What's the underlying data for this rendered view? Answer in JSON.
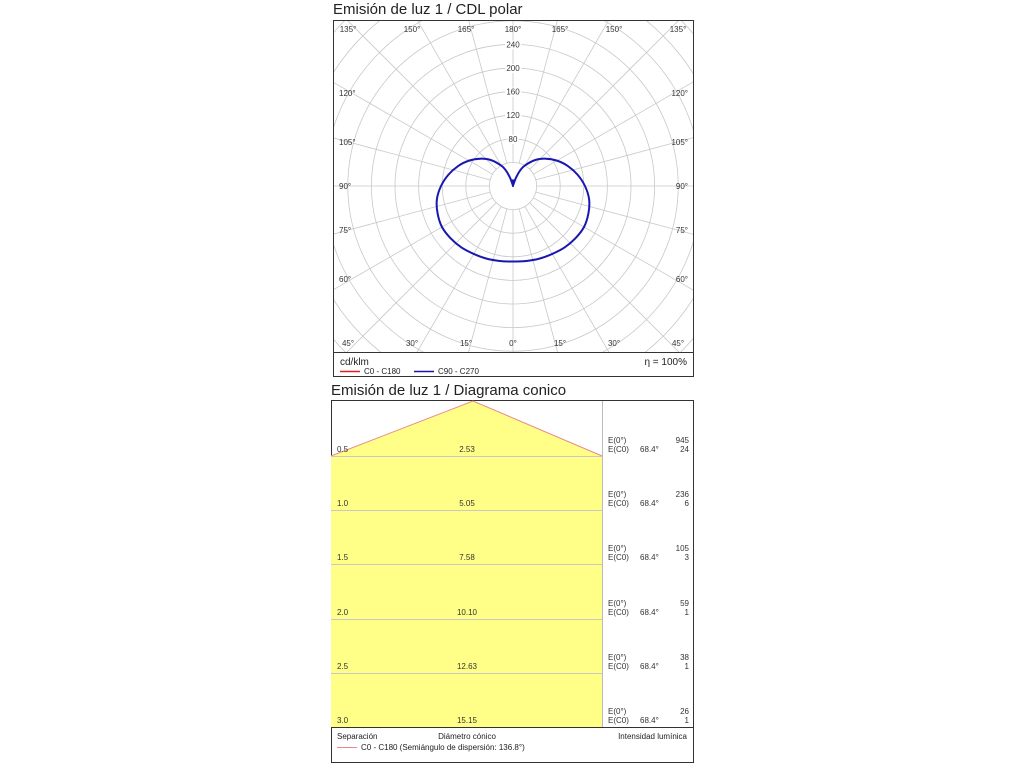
{
  "chart_data": [
    {
      "type": "polar",
      "title": "Emisión de luz 1 / CDL polar",
      "unit": "cd/klm",
      "efficiency": "η = 100%",
      "angle_labels_top": [
        "135°",
        "150°",
        "165°",
        "180°",
        "165°",
        "150°",
        "135°"
      ],
      "angle_labels_bottom": [
        "45°",
        "30°",
        "15°",
        "0°",
        "15°",
        "30°",
        "45°"
      ],
      "angle_labels_left": [
        "120°",
        "105°",
        "90°",
        "75°",
        "60°"
      ],
      "angle_labels_right": [
        "120°",
        "105°",
        "90°",
        "75°",
        "60°"
      ],
      "radial_tick_labels": [
        "80",
        "120",
        "160",
        "200",
        "240"
      ],
      "radial_ticks": [
        80,
        120,
        160,
        200,
        240
      ],
      "rlim": [
        0,
        280
      ],
      "grid": true,
      "legend": [
        {
          "name": "C0 - C180",
          "color": "#e02020"
        },
        {
          "name": "C90 - C270",
          "color": "#1a17b0"
        }
      ],
      "series": [
        {
          "name": "C90 - C270",
          "color": "#1a17b0",
          "gamma_deg": [
            0,
            10,
            20,
            30,
            40,
            50,
            60,
            70,
            80,
            90,
            100,
            110,
            120,
            130,
            140,
            150,
            155,
            160,
            165,
            170,
            175,
            180
          ],
          "intensity_cd_klm": [
            128,
            129,
            131,
            133,
            136,
            138,
            139,
            136,
            131,
            122,
            111,
            99,
            86,
            72,
            57,
            40,
            30,
            16,
            3,
            0,
            6,
            10
          ]
        }
      ]
    },
    {
      "type": "cone",
      "title": "Emisión de luz 1 / Diagrama conico",
      "legend": "C0 - C180 (Semiángulo de dispersión: 136.8°)",
      "legend_color": "#e88b8b",
      "fill_color": "#ffff88",
      "footer_labels": {
        "separation": "Separación",
        "diameter": "Diámetro cónico",
        "intensity": "Intensidad lumínica"
      },
      "rows": [
        {
          "distance": "0.5",
          "diameter": "2.53",
          "e0_label": "E(0°)",
          "ec0_label": "E(C0)",
          "angle": "68.4°",
          "e0": "945",
          "ec0": "24"
        },
        {
          "distance": "1.0",
          "diameter": "5.05",
          "e0_label": "E(0°)",
          "ec0_label": "E(C0)",
          "angle": "68.4°",
          "e0": "236",
          "ec0": "6"
        },
        {
          "distance": "1.5",
          "diameter": "7.58",
          "e0_label": "E(0°)",
          "ec0_label": "E(C0)",
          "angle": "68.4°",
          "e0": "105",
          "ec0": "3"
        },
        {
          "distance": "2.0",
          "diameter": "10.10",
          "e0_label": "E(0°)",
          "ec0_label": "E(C0)",
          "angle": "68.4°",
          "e0": "59",
          "ec0": "1"
        },
        {
          "distance": "2.5",
          "diameter": "12.63",
          "e0_label": "E(0°)",
          "ec0_label": "E(C0)",
          "angle": "68.4°",
          "e0": "38",
          "ec0": "1"
        },
        {
          "distance": "3.0",
          "diameter": "15.15",
          "e0_label": "E(0°)",
          "ec0_label": "E(C0)",
          "angle": "68.4°",
          "e0": "26",
          "ec0": "1"
        }
      ]
    }
  ]
}
